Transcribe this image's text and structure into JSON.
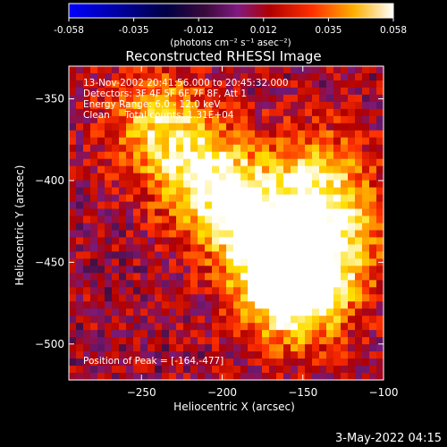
{
  "colorbar": {
    "ticks": [
      "-0.058",
      "-0.035",
      "-0.012",
      "0.012",
      "0.035",
      "0.058"
    ],
    "unit_label": "(photons cm⁻² s⁻¹ asec⁻²)",
    "range": [
      -0.058,
      0.058
    ]
  },
  "title": "Reconstructed RHESSI Image",
  "annotations": {
    "time": "13-Nov-2002 20:41:56.000 to 20:45:32.000",
    "detectors": "Detectors: 3F 4F 5F 6F 7F 8F, Att 1",
    "energy": "Energy Range: 6.0 - 12.0 keV",
    "clean": "Clean     Total counts: 1.31E+04",
    "peak": "Position of Peak = [-164,-477]"
  },
  "footer_date": "3-May-2022 04:15",
  "chart_data": {
    "type": "heatmap",
    "title": "Reconstructed RHESSI Image",
    "xlabel": "Heliocentric X (arcsec)",
    "ylabel": "Heliocentric Y (arcsec)",
    "xlim": [
      -295,
      -100
    ],
    "ylim": [
      -522,
      -330
    ],
    "xticks": [
      -250,
      -200,
      -150,
      -100
    ],
    "yticks": [
      -350,
      -400,
      -450,
      -500
    ],
    "peak": [
      -164,
      -477
    ],
    "colormap": [
      "#0000ff",
      "#000000",
      "#7a1a7a",
      "#b00000",
      "#ff3000",
      "#ff9000",
      "#ffe000",
      "#ffffff"
    ],
    "bright_region": [
      {
        "x": -240,
        "y": -365
      },
      {
        "x": -215,
        "y": -395
      },
      {
        "x": -190,
        "y": -415
      },
      {
        "x": -170,
        "y": -440
      },
      {
        "x": -160,
        "y": -465
      },
      {
        "x": -150,
        "y": -470
      },
      {
        "x": -140,
        "y": -400
      },
      {
        "x": -130,
        "y": -435
      }
    ]
  }
}
